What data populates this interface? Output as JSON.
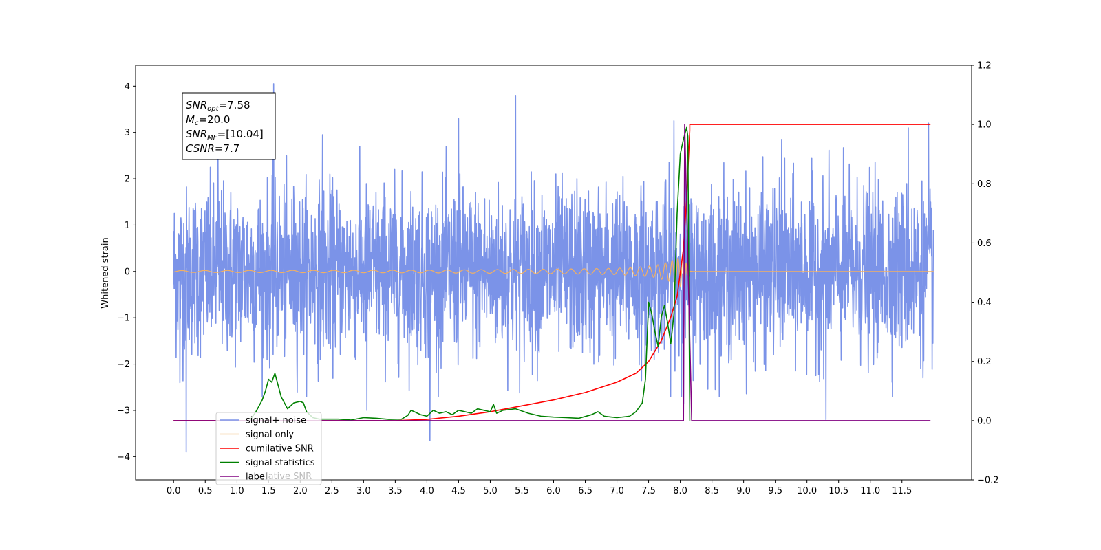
{
  "chart_data": {
    "type": "line",
    "ylabel_left": "Whitened strain",
    "xlim": [
      -0.6,
      12.6
    ],
    "ylim_left": [
      -4.5,
      4.45
    ],
    "ylim_right": [
      -0.2,
      1.2
    ],
    "x_ticks": [
      "0.0",
      "0.5",
      "1.0",
      "1.5",
      "2.0",
      "2.5",
      "3.0",
      "3.5",
      "4.0",
      "4.5",
      "5.0",
      "5.5",
      "6.0",
      "6.5",
      "7.0",
      "7.5",
      "8.0",
      "8.5",
      "9.0",
      "9.5",
      "10.0",
      "10.5",
      "11.0",
      "11.5"
    ],
    "y_ticks_left": [
      "−4",
      "−3",
      "−2",
      "−1",
      "0",
      "1",
      "2",
      "3",
      "4"
    ],
    "y_ticks_right": [
      "−0.2",
      "0.0",
      "0.2",
      "0.4",
      "0.6",
      "0.8",
      "1.0",
      "1.2"
    ],
    "grid": false,
    "legend_position": "lower-left",
    "colors": {
      "signal_noise": "#7b93e8",
      "signal_only": "#f2b062",
      "cumulative_snr": "#ff0000",
      "signal_statistics": "#008000",
      "label": "#800080",
      "ghost_text": "#bbbbbb"
    },
    "annotation": [
      {
        "base": "SNR",
        "sub": "opt",
        "rest": "=7.58"
      },
      {
        "base": "M",
        "sub": "c",
        "rest": "=20.0"
      },
      {
        "base": "SNR",
        "sub": "MF",
        "rest": "=[10.04]"
      },
      {
        "base": "CSNR",
        "sub": "",
        "rest": "=7.7"
      }
    ],
    "ghost_text": "lative SNR",
    "series": [
      {
        "name": "signal+ noise",
        "axis": "left",
        "x_range": [
          0,
          12.0
        ],
        "std": 0.9,
        "peak_x": [
          0.1,
          0.2,
          0.7,
          1.58,
          2.35,
          3.05,
          4.05,
          4.5,
          5.4,
          7.9,
          8.05,
          9.6,
          10.3,
          11.6,
          11.92
        ],
        "peak_y": [
          -2.4,
          -3.9,
          2.85,
          4.05,
          2.95,
          -3.0,
          -3.65,
          3.3,
          3.8,
          3.25,
          -2.85,
          2.85,
          -3.2,
          3.1,
          3.2
        ]
      },
      {
        "name": "signal only",
        "axis": "left",
        "envelope_x": [
          0,
          4.0,
          5.0,
          6.0,
          6.5,
          7.0,
          7.3,
          7.6,
          7.8,
          7.95,
          8.05,
          8.1,
          8.12
        ],
        "envelope_y": [
          0.02,
          0.03,
          0.04,
          0.05,
          0.06,
          0.07,
          0.09,
          0.13,
          0.2,
          0.28,
          0.38,
          0.15,
          0.02
        ]
      },
      {
        "name": "cumilative SNR",
        "axis": "right",
        "x": [
          0,
          2.0,
          3.0,
          3.5,
          4.0,
          4.5,
          5.0,
          5.5,
          6.0,
          6.5,
          7.0,
          7.3,
          7.5,
          7.7,
          7.85,
          7.95,
          8.05,
          8.1,
          8.15,
          8.15,
          11.95
        ],
        "y": [
          0.0,
          0.0,
          0.0,
          0.0,
          0.004,
          0.015,
          0.03,
          0.05,
          0.07,
          0.095,
          0.13,
          0.16,
          0.2,
          0.27,
          0.35,
          0.42,
          0.58,
          0.75,
          0.98,
          1.0,
          1.0
        ]
      },
      {
        "name": "signal statistics",
        "axis": "right",
        "x": [
          1.2,
          1.3,
          1.4,
          1.45,
          1.5,
          1.55,
          1.6,
          1.65,
          1.7,
          1.75,
          1.8,
          1.9,
          2.0,
          2.05,
          2.1,
          2.2,
          2.3,
          2.4,
          2.6,
          2.8,
          3.0,
          3.2,
          3.4,
          3.6,
          3.7,
          3.75,
          3.8,
          3.9,
          4.0,
          4.1,
          4.2,
          4.3,
          4.4,
          4.5,
          4.6,
          4.7,
          4.8,
          4.9,
          5.0,
          5.05,
          5.1,
          5.2,
          5.4,
          5.6,
          5.8,
          6.0,
          6.2,
          6.4,
          6.6,
          6.7,
          6.8,
          7.0,
          7.2,
          7.3,
          7.4,
          7.45,
          7.5,
          7.55,
          7.6,
          7.65,
          7.7,
          7.75,
          7.8,
          7.85,
          7.9,
          7.95,
          8.0,
          8.05,
          8.1,
          8.12,
          8.15
        ],
        "y": [
          0.0,
          0.03,
          0.07,
          0.1,
          0.14,
          0.13,
          0.16,
          0.12,
          0.08,
          0.06,
          0.04,
          0.06,
          0.065,
          0.06,
          0.03,
          0.01,
          0.005,
          0.005,
          0.005,
          0.002,
          0.01,
          0.008,
          0.004,
          0.005,
          0.018,
          0.035,
          0.03,
          0.02,
          0.015,
          0.035,
          0.025,
          0.03,
          0.02,
          0.035,
          0.03,
          0.025,
          0.04,
          0.035,
          0.03,
          0.055,
          0.025,
          0.035,
          0.04,
          0.025,
          0.015,
          0.012,
          0.01,
          0.008,
          0.02,
          0.03,
          0.015,
          0.01,
          0.015,
          0.03,
          0.06,
          0.14,
          0.4,
          0.36,
          0.3,
          0.25,
          0.35,
          0.39,
          0.33,
          0.26,
          0.36,
          0.7,
          0.9,
          0.95,
          0.99,
          0.96,
          0.0
        ]
      },
      {
        "name": "label",
        "axis": "right",
        "x": [
          0,
          8.05,
          8.07,
          8.18,
          8.2,
          11.95
        ],
        "y": [
          0.0,
          0.0,
          1.0,
          0.0,
          0.0,
          0.0
        ]
      }
    ]
  }
}
